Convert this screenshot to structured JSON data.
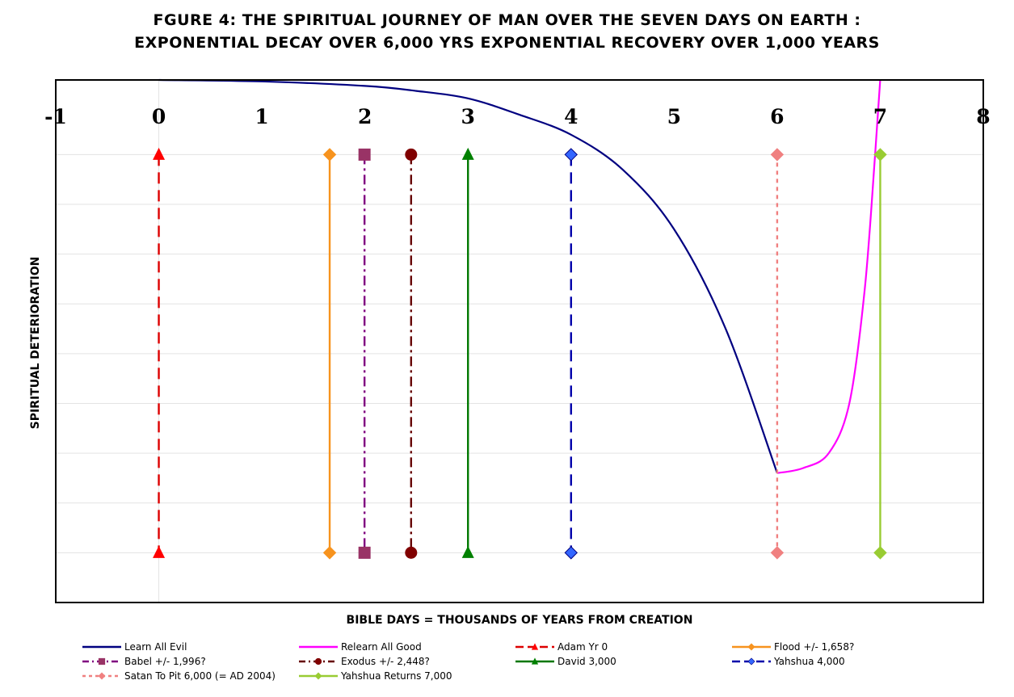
{
  "chart_data": {
    "type": "line",
    "title": "FGURE 4: THE SPIRITUAL JOURNEY OF MAN OVER THE SEVEN DAYS ON EARTH :",
    "subtitle": "EXPONENTIAL DECAY OVER 6,000 YRS EXPONENTIAL RECOVERY OVER 1,000 YEARS",
    "xlabel": "BIBLE DAYS = THOUSANDS OF YEARS FROM CREATION",
    "ylabel": "SPIRITUAL DETERIORATION",
    "xlim": [
      -1,
      8
    ],
    "ylim": [
      -10,
      0.5
    ],
    "x_ticks": [
      "-1",
      "0",
      "1",
      "2",
      "3",
      "4",
      "5",
      "6",
      "7",
      "8"
    ],
    "x_tick_values": [
      -1,
      0,
      1,
      2,
      3,
      4,
      5,
      6,
      7,
      8
    ],
    "grid": true,
    "legend_position": "bottom",
    "series": [
      {
        "name": "Learn All Evil",
        "kind": "curve",
        "color": "#000080",
        "dash": "solid",
        "marker": "none",
        "points": [
          [
            0,
            0.5
          ],
          [
            1,
            0.47
          ],
          [
            2,
            0.38
          ],
          [
            2.5,
            0.28
          ],
          [
            3,
            0.13
          ],
          [
            3.5,
            -0.2
          ],
          [
            4,
            -0.6
          ],
          [
            4.5,
            -1.3
          ],
          [
            5,
            -2.5
          ],
          [
            5.5,
            -4.5
          ],
          [
            6,
            -7.4
          ]
        ]
      },
      {
        "name": "Relearn All Good",
        "kind": "curve",
        "color": "#ff00ff",
        "dash": "solid",
        "marker": "none",
        "points": [
          [
            6,
            -7.4
          ],
          [
            6.25,
            -7.3
          ],
          [
            6.5,
            -7.0
          ],
          [
            6.7,
            -6.0
          ],
          [
            6.85,
            -3.7
          ],
          [
            6.95,
            -1.0
          ],
          [
            7.0,
            0.5
          ]
        ]
      },
      {
        "name": "Adam Yr 0",
        "kind": "vline",
        "x": 0,
        "y_top": -1,
        "y_bottom": -9,
        "color": "#dd0000",
        "dash": "dashed",
        "marker": "triangle",
        "marker_color": "#ff0000"
      },
      {
        "name": "Flood +/- 1,658?",
        "kind": "vline",
        "x": 1.658,
        "y_top": -1,
        "y_bottom": -9,
        "color": "#f7931e",
        "dash": "solid",
        "marker": "diamond",
        "marker_color": "#f7931e"
      },
      {
        "name": "Babel +/- 1,996?",
        "kind": "vline",
        "x": 1.996,
        "y_top": -1,
        "y_bottom": -9,
        "color": "#800080",
        "dash": "dashdot",
        "marker": "square",
        "marker_color": "#993366"
      },
      {
        "name": "Exodus +/- 2,448?",
        "kind": "vline",
        "x": 2.448,
        "y_top": -1,
        "y_bottom": -9,
        "color": "#660000",
        "dash": "dashdot",
        "marker": "circle",
        "marker_color": "#800000"
      },
      {
        "name": "David 3,000",
        "kind": "vline",
        "x": 3,
        "y_top": -1,
        "y_bottom": -9,
        "color": "#007700",
        "dash": "solid",
        "marker": "triangle",
        "marker_color": "#008000"
      },
      {
        "name": "Yahshua  4,000",
        "kind": "vline",
        "x": 4,
        "y_top": -1,
        "y_bottom": -9,
        "color": "#0000aa",
        "dash": "dashed",
        "marker": "diamond",
        "marker_color": "#3366ff"
      },
      {
        "name": "Satan To Pit 6,000 (= AD 2004)",
        "kind": "vline",
        "x": 6,
        "y_top": -1,
        "y_bottom": -9,
        "color": "#f08080",
        "dash": "dotted",
        "marker": "diamond",
        "marker_color": "#f08080"
      },
      {
        "name": "Yahshua Returns 7,000",
        "kind": "vline",
        "x": 7,
        "y_top": -1,
        "y_bottom": -9,
        "color": "#99cc33",
        "dash": "solid",
        "marker": "diamond",
        "marker_color": "#99cc33"
      }
    ]
  }
}
